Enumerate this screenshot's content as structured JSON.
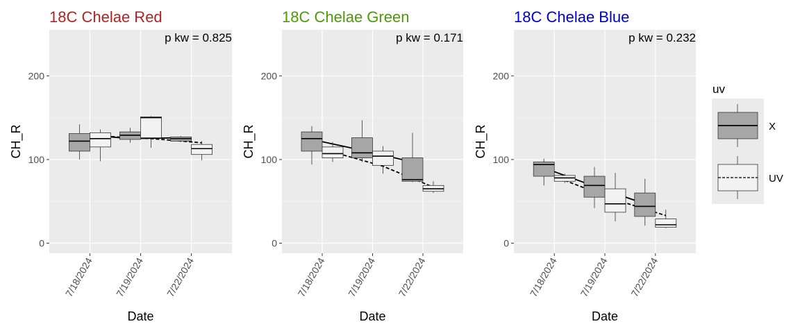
{
  "chart_data": [
    {
      "type": "box",
      "title": "18C Chelae Red",
      "title_color": "#B22222",
      "annotation": "p kw = 0.825",
      "xlabel": "Date",
      "ylabel": "CH_R",
      "ylim": [
        -12,
        255
      ],
      "yticks": [
        0,
        100,
        200
      ],
      "categories": [
        "7/18/2024",
        "7/19/2024",
        "7/22/2024"
      ],
      "series": [
        {
          "name": "X",
          "fill": "#A6A6A6",
          "line": "solid",
          "boxes": [
            {
              "category": "7/18/2024",
              "whisker_low": 100,
              "q1": 110,
              "median": 122,
              "q3": 131,
              "whisker_high": 142
            },
            {
              "category": "7/19/2024",
              "whisker_low": 120,
              "q1": 124,
              "median": 129,
              "q3": 133,
              "whisker_high": 138
            },
            {
              "category": "7/22/2024",
              "whisker_low": 121,
              "q1": 122,
              "median": 125,
              "q3": 127,
              "whisker_high": 128
            }
          ],
          "trend": [
            130,
            125,
            126
          ]
        },
        {
          "name": "UV",
          "fill": "#F2F2F2",
          "line": "dashed",
          "boxes": [
            {
              "category": "7/18/2024",
              "whisker_low": 98,
              "q1": 115,
              "median": 125,
              "q3": 132,
              "whisker_high": 136
            },
            {
              "category": "7/19/2024",
              "whisker_low": 114,
              "q1": 126,
              "median": 150,
              "q3": 151,
              "whisker_high": 152
            },
            {
              "category": "7/22/2024",
              "whisker_low": 99,
              "q1": 106,
              "median": 113,
              "q3": 118,
              "whisker_high": 122
            }
          ],
          "trend": [
            128,
            125,
            120
          ]
        }
      ]
    },
    {
      "type": "box",
      "title": "18C Chelae Green",
      "title_color": "#4E9A06",
      "annotation": "p kw = 0.171",
      "xlabel": "Date",
      "ylabel": "CH_R",
      "ylim": [
        -12,
        255
      ],
      "yticks": [
        0,
        100,
        200
      ],
      "categories": [
        "7/18/2024",
        "7/19/2024",
        "7/22/2024"
      ],
      "series": [
        {
          "name": "X",
          "fill": "#A6A6A6",
          "line": "solid",
          "boxes": [
            {
              "category": "7/18/2024",
              "whisker_low": 94,
              "q1": 110,
              "median": 125,
              "q3": 133,
              "whisker_high": 140
            },
            {
              "category": "7/19/2024",
              "whisker_low": 97,
              "q1": 102,
              "median": 108,
              "q3": 126,
              "whisker_high": 147
            },
            {
              "category": "7/22/2024",
              "whisker_low": 73,
              "q1": 74,
              "median": 76,
              "q3": 102,
              "whisker_high": 132
            }
          ],
          "trend": [
            124,
            111,
            97
          ]
        },
        {
          "name": "UV",
          "fill": "#F2F2F2",
          "line": "dashed",
          "boxes": [
            {
              "category": "7/18/2024",
              "whisker_low": 97,
              "q1": 102,
              "median": 107,
              "q3": 115,
              "whisker_high": 121
            },
            {
              "category": "7/19/2024",
              "whisker_low": 83,
              "q1": 93,
              "median": 104,
              "q3": 110,
              "whisker_high": 116
            },
            {
              "category": "7/22/2024",
              "whisker_low": 60,
              "q1": 62,
              "median": 65,
              "q3": 69,
              "whisker_high": 74
            }
          ],
          "trend": [
            109,
            92,
            67
          ]
        }
      ]
    },
    {
      "type": "box",
      "title": "18C Chelae Blue",
      "title_color": "#0000CD",
      "annotation": "p kw = 0.232",
      "xlabel": "Date",
      "ylabel": "CH_R",
      "ylim": [
        -12,
        255
      ],
      "yticks": [
        0,
        100,
        200
      ],
      "categories": [
        "7/18/2024",
        "7/19/2024",
        "7/22/2024"
      ],
      "series": [
        {
          "name": "X",
          "fill": "#A6A6A6",
          "line": "solid",
          "boxes": [
            {
              "category": "7/18/2024",
              "whisker_low": 69,
              "q1": 80,
              "median": 94,
              "q3": 97,
              "whisker_high": 101
            },
            {
              "category": "7/19/2024",
              "whisker_low": 42,
              "q1": 55,
              "median": 69,
              "q3": 80,
              "whisker_high": 91
            },
            {
              "category": "7/22/2024",
              "whisker_low": 21,
              "q1": 32,
              "median": 44,
              "q3": 60,
              "whisker_high": 77
            }
          ],
          "trend": [
            90,
            68,
            47
          ]
        },
        {
          "name": "UV",
          "fill": "#F2F2F2",
          "line": "dashed",
          "boxes": [
            {
              "category": "7/18/2024",
              "whisker_low": 72,
              "q1": 74,
              "median": 78,
              "q3": 81,
              "whisker_high": 83
            },
            {
              "category": "7/19/2024",
              "whisker_low": 26,
              "q1": 37,
              "median": 47,
              "q3": 65,
              "whisker_high": 84
            },
            {
              "category": "7/22/2024",
              "whisker_low": 18,
              "q1": 19,
              "median": 22,
              "q3": 29,
              "whisker_high": 40
            }
          ],
          "trend": [
            75,
            52,
            33
          ]
        }
      ]
    }
  ],
  "legend": {
    "title": "uv",
    "placement": "right",
    "items": [
      {
        "label": "X",
        "fill": "#A6A6A6",
        "line": "solid"
      },
      {
        "label": "UV",
        "fill": "#F2F2F2",
        "line": "dashed"
      }
    ]
  }
}
